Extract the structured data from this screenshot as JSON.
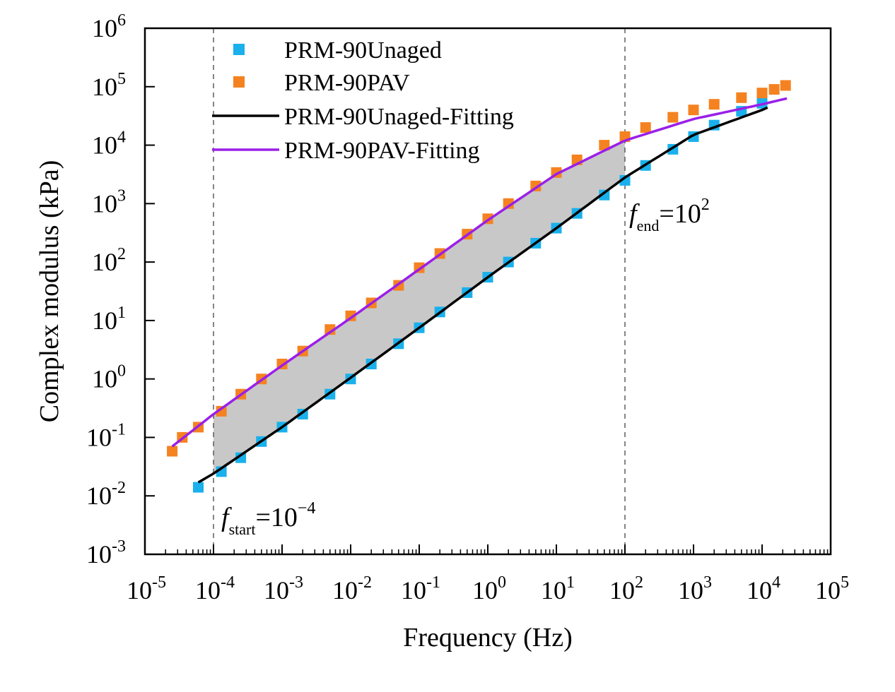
{
  "chart_data": {
    "type": "scatter",
    "title": "",
    "xlabel": "Frequency (Hz)",
    "ylabel": "Complex modulus (kPa)",
    "xscale": "log",
    "yscale": "log",
    "xlim": [
      1e-05,
      100000.0
    ],
    "ylim": [
      0.001,
      1000000.0
    ],
    "grid": false,
    "legend_position": "top-left",
    "x_ticks": [
      {
        "base": "10",
        "exp": "-5",
        "value": 1e-05
      },
      {
        "base": "10",
        "exp": "-4",
        "value": 0.0001
      },
      {
        "base": "10",
        "exp": "-3",
        "value": 0.001
      },
      {
        "base": "10",
        "exp": "-2",
        "value": 0.01
      },
      {
        "base": "10",
        "exp": "-1",
        "value": 0.1
      },
      {
        "base": "10",
        "exp": "0",
        "value": 1
      },
      {
        "base": "10",
        "exp": "1",
        "value": 10
      },
      {
        "base": "10",
        "exp": "2",
        "value": 100
      },
      {
        "base": "10",
        "exp": "3",
        "value": 1000
      },
      {
        "base": "10",
        "exp": "4",
        "value": 10000
      },
      {
        "base": "10",
        "exp": "5",
        "value": 100000
      }
    ],
    "y_ticks": [
      {
        "base": "10",
        "exp": "-3",
        "value": 0.001
      },
      {
        "base": "10",
        "exp": "-2",
        "value": 0.01
      },
      {
        "base": "10",
        "exp": "-1",
        "value": 0.1
      },
      {
        "base": "10",
        "exp": "0",
        "value": 1
      },
      {
        "base": "10",
        "exp": "1",
        "value": 10
      },
      {
        "base": "10",
        "exp": "2",
        "value": 100
      },
      {
        "base": "10",
        "exp": "3",
        "value": 1000
      },
      {
        "base": "10",
        "exp": "4",
        "value": 10000
      },
      {
        "base": "10",
        "exp": "5",
        "value": 100000
      },
      {
        "base": "10",
        "exp": "6",
        "value": 1000000
      }
    ],
    "series": [
      {
        "name": "PRM-90Unaged",
        "kind": "scatter",
        "marker": "square",
        "color": "#1ab0ec",
        "x": [
          6e-05,
          0.00013,
          0.00025,
          0.0005,
          0.001,
          0.002,
          0.005,
          0.01,
          0.02,
          0.05,
          0.1,
          0.2,
          0.5,
          1,
          2,
          5,
          10,
          20,
          50,
          100,
          200,
          500,
          1000,
          2000,
          5000,
          10000
        ],
        "y": [
          0.014,
          0.026,
          0.045,
          0.085,
          0.15,
          0.25,
          0.55,
          1.0,
          1.8,
          4.0,
          7.5,
          14,
          30,
          55,
          100,
          210,
          380,
          680,
          1400,
          2500,
          4500,
          8500,
          14000,
          22000,
          38000,
          52000
        ]
      },
      {
        "name": "PRM-90PAV",
        "kind": "scatter",
        "marker": "square",
        "color": "#f58220",
        "x": [
          2.5e-05,
          3.5e-05,
          6e-05,
          0.00013,
          0.00025,
          0.0005,
          0.001,
          0.002,
          0.005,
          0.01,
          0.02,
          0.05,
          0.1,
          0.2,
          0.5,
          1,
          2,
          5,
          10,
          20,
          50,
          100,
          200,
          500,
          1000,
          2000,
          5000,
          10000,
          15000,
          22000
        ],
        "y": [
          0.058,
          0.1,
          0.15,
          0.28,
          0.55,
          1.0,
          1.8,
          3.0,
          7.0,
          12,
          20,
          40,
          80,
          140,
          300,
          550,
          1000,
          2000,
          3400,
          5600,
          10000,
          14000,
          20000,
          30000,
          40000,
          50000,
          65000,
          78000,
          90000,
          105000
        ]
      },
      {
        "name": "PRM-90Unaged-Fitting",
        "kind": "line",
        "color": "#000000",
        "x": [
          6e-05,
          0.0001,
          0.001,
          0.01,
          0.1,
          1,
          10,
          100,
          1000,
          10000,
          12000
        ],
        "y": [
          0.017,
          0.024,
          0.15,
          1.05,
          7.5,
          55,
          380,
          2800,
          15000,
          40000,
          44000
        ]
      },
      {
        "name": "PRM-90PAV-Fitting",
        "kind": "line",
        "color": "#9a1fe8",
        "x": [
          2.5e-05,
          0.0001,
          0.001,
          0.01,
          0.1,
          1,
          10,
          100,
          1000,
          10000,
          23000
        ],
        "y": [
          0.07,
          0.25,
          1.7,
          11,
          75,
          520,
          3200,
          12000,
          28000,
          50000,
          63000
        ]
      }
    ],
    "shaded_region": {
      "x_from": 0.0001,
      "x_to": 100,
      "between": [
        "PRM-90PAV-Fitting",
        "PRM-90Unaged-Fitting"
      ],
      "color": "#c8c8c8"
    },
    "vlines": [
      {
        "x": 0.0001,
        "style": "dashed"
      },
      {
        "x": 100,
        "style": "dashed"
      }
    ],
    "annotations": [
      {
        "main": "f",
        "sub": "start",
        "eq": "=10",
        "exp": "−4",
        "x": 0.0001
      },
      {
        "main": "f",
        "sub": "end",
        "eq": "=10",
        "exp": "2",
        "x": 100
      }
    ]
  }
}
